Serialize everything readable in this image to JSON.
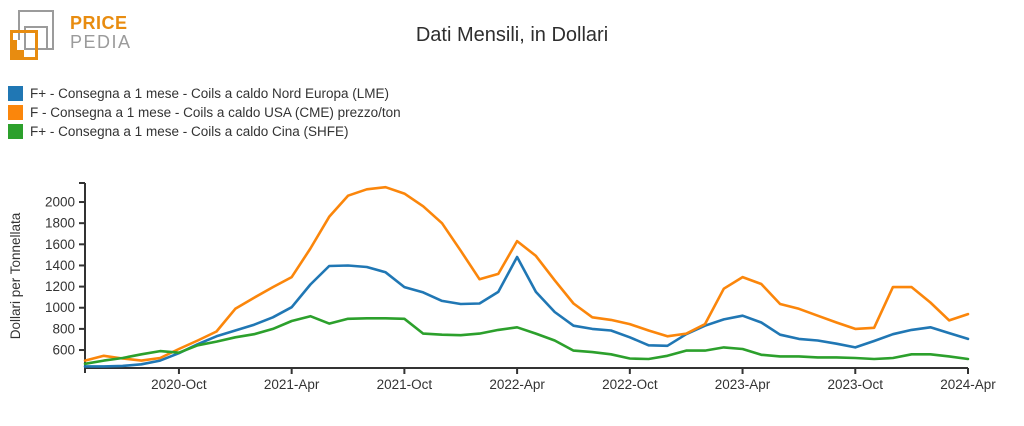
{
  "logo": {
    "line1": "PRICE",
    "line2": "PEDIA"
  },
  "title": "Dati Mensili, in Dollari",
  "chart_data": {
    "type": "line",
    "title": "Dati Mensili, in Dollari",
    "xlabel": "",
    "ylabel": "Dollari per Tonnellata",
    "ylim": [
      430,
      2180
    ],
    "yticks": [
      600,
      800,
      1000,
      1200,
      1400,
      1600,
      1800,
      2000
    ],
    "grid": false,
    "legend_position": "top-left",
    "axis_color": "#333333",
    "x": [
      "2020-May",
      "2020-Jun",
      "2020-Jul",
      "2020-Aug",
      "2020-Sep",
      "2020-Oct",
      "2020-Nov",
      "2020-Dec",
      "2021-Jan",
      "2021-Feb",
      "2021-Mar",
      "2021-Apr",
      "2021-May",
      "2021-Jun",
      "2021-Jul",
      "2021-Aug",
      "2021-Sep",
      "2021-Oct",
      "2021-Nov",
      "2021-Dec",
      "2022-Jan",
      "2022-Feb",
      "2022-Mar",
      "2022-Apr",
      "2022-May",
      "2022-Jun",
      "2022-Jul",
      "2022-Aug",
      "2022-Sep",
      "2022-Oct",
      "2022-Nov",
      "2022-Dec",
      "2023-Jan",
      "2023-Feb",
      "2023-Mar",
      "2023-Apr",
      "2023-May",
      "2023-Jun",
      "2023-Jul",
      "2023-Aug",
      "2023-Sep",
      "2023-Oct",
      "2023-Nov",
      "2023-Dec",
      "2024-Jan",
      "2024-Feb",
      "2024-Mar",
      "2024-Apr"
    ],
    "xtick_indices": [
      5,
      11,
      17,
      23,
      29,
      35,
      41,
      47
    ],
    "xtick_labels": [
      "2020-Oct",
      "2021-Apr",
      "2021-Oct",
      "2022-Apr",
      "2022-Oct",
      "2023-Apr",
      "2023-Oct",
      "2024-Apr"
    ],
    "series": [
      {
        "name": "F+ - Consegna a 1 mese - Coils a caldo Nord Europa (LME)",
        "color": "#2077b4",
        "values": [
          445,
          445,
          450,
          465,
          500,
          570,
          655,
          730,
          785,
          840,
          910,
          1005,
          1220,
          1395,
          1400,
          1385,
          1335,
          1195,
          1145,
          1065,
          1035,
          1040,
          1150,
          1480,
          1150,
          960,
          830,
          800,
          785,
          720,
          645,
          640,
          750,
          830,
          890,
          925,
          860,
          745,
          705,
          690,
          660,
          625,
          685,
          750,
          790,
          815,
          760,
          705
        ]
      },
      {
        "name": "F - Consegna a 1 mese - Coils a caldo USA (CME) prezzo/ton",
        "color": "#fb860b",
        "values": [
          500,
          545,
          520,
          500,
          525,
          610,
          690,
          775,
          990,
          1095,
          1195,
          1290,
          1560,
          1860,
          2060,
          2120,
          2140,
          2080,
          1960,
          1800,
          1540,
          1270,
          1320,
          1630,
          1490,
          1260,
          1040,
          910,
          885,
          845,
          785,
          730,
          755,
          845,
          1180,
          1290,
          1225,
          1035,
          990,
          925,
          860,
          800,
          810,
          1195,
          1195,
          1050,
          880,
          940
        ]
      },
      {
        "name": "F+ - Consegna a 1 mese - Coils a caldo Cina (SHFE)",
        "color": "#2ca02c",
        "values": [
          470,
          500,
          525,
          560,
          590,
          575,
          645,
          680,
          720,
          750,
          800,
          875,
          920,
          850,
          895,
          900,
          900,
          895,
          755,
          745,
          740,
          755,
          790,
          815,
          755,
          690,
          595,
          580,
          560,
          520,
          515,
          545,
          595,
          595,
          625,
          610,
          555,
          540,
          540,
          530,
          530,
          525,
          515,
          525,
          560,
          560,
          540,
          515
        ]
      }
    ]
  }
}
